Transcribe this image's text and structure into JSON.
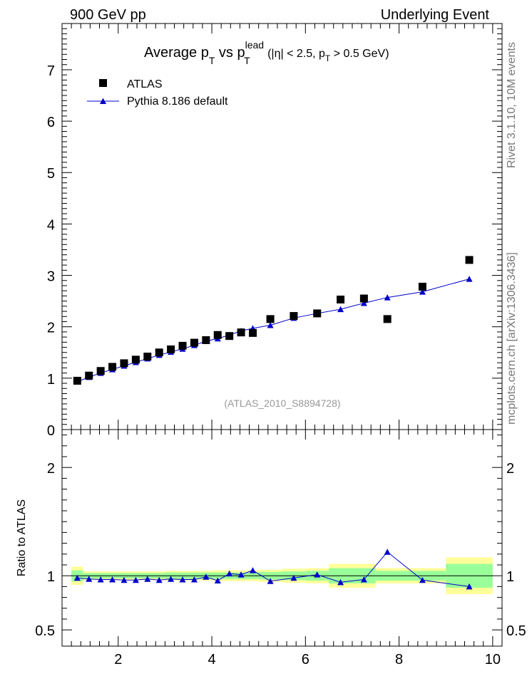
{
  "header": {
    "left": "900 GeV pp",
    "right": "Underlying Event"
  },
  "side": {
    "top": "Rivet 3.1.10,  10M events",
    "bottom": "mcplots.cern.ch [arXiv:1306.3436]"
  },
  "chart_data": [
    {
      "type": "scatter",
      "title_parts": {
        "pre": "Average p",
        "pre_sub": "T",
        "vs": " vs p",
        "sup": "lead",
        "sub2": "T",
        "cut_a": " (|η| < 2.5, p",
        "cut_sub": "T",
        "cut_b": " > 0.5 GeV)"
      },
      "watermark": "(ATLAS_2010_S8894728)",
      "xlim": [
        0.8,
        10.2
      ],
      "ylim": [
        0,
        7.9
      ],
      "yticks": [
        0,
        1,
        2,
        3,
        4,
        5,
        6,
        7
      ],
      "legend_position": "top-left",
      "colors": {
        "data": "#000000",
        "mc": "#0000cc"
      },
      "series": [
        {
          "name": "ATLAS",
          "marker": "square",
          "x": [
            1.125,
            1.375,
            1.625,
            1.875,
            2.125,
            2.375,
            2.625,
            2.875,
            3.125,
            3.375,
            3.625,
            3.875,
            4.125,
            4.375,
            4.625,
            4.875,
            5.25,
            5.75,
            6.25,
            6.75,
            7.25,
            7.75,
            8.5,
            9.5
          ],
          "y": [
            0.95,
            1.05,
            1.14,
            1.22,
            1.29,
            1.36,
            1.42,
            1.5,
            1.56,
            1.63,
            1.69,
            1.74,
            1.84,
            1.82,
            1.89,
            1.88,
            2.15,
            2.21,
            2.26,
            2.53,
            2.55,
            2.15,
            2.78,
            3.3
          ]
        },
        {
          "name": "Pythia 8.186 default",
          "marker": "triangle",
          "x": [
            1.125,
            1.375,
            1.625,
            1.875,
            2.125,
            2.375,
            2.625,
            2.875,
            3.125,
            3.375,
            3.625,
            3.875,
            4.125,
            4.375,
            4.625,
            4.875,
            5.25,
            5.75,
            6.25,
            6.75,
            7.25,
            7.75,
            8.5,
            9.5
          ],
          "y": [
            0.93,
            1.02,
            1.1,
            1.17,
            1.24,
            1.31,
            1.38,
            1.45,
            1.51,
            1.57,
            1.64,
            1.72,
            1.77,
            1.84,
            1.92,
            1.97,
            2.03,
            2.17,
            2.26,
            2.34,
            2.46,
            2.57,
            2.68,
            2.93
          ]
        }
      ]
    },
    {
      "type": "line",
      "ylabel": "Ratio to ATLAS",
      "xlim": [
        0.8,
        10.2
      ],
      "ylim": [
        0.35,
        2.35
      ],
      "xticks": [
        2,
        4,
        6,
        8,
        10
      ],
      "yticks": [
        0.5,
        1,
        2
      ],
      "ytick_labels": [
        "0.5",
        "1",
        "2"
      ],
      "colors": {
        "band_outer": "#ffff99",
        "band_inner": "#99ff99",
        "mc": "#0000cc"
      },
      "bands": {
        "edges": [
          1.0,
          1.25,
          1.5,
          1.75,
          2.0,
          2.25,
          2.5,
          2.75,
          3.0,
          3.25,
          3.5,
          3.75,
          4.0,
          4.25,
          4.5,
          4.75,
          5.0,
          5.5,
          6.0,
          6.5,
          7.0,
          7.5,
          8.0,
          9.0,
          10.0
        ],
        "outer": [
          0.085,
          0.04,
          0.04,
          0.04,
          0.04,
          0.04,
          0.04,
          0.04,
          0.045,
          0.045,
          0.045,
          0.045,
          0.05,
          0.05,
          0.05,
          0.05,
          0.055,
          0.065,
          0.07,
          0.11,
          0.11,
          0.07,
          0.07,
          0.17
        ],
        "inner": [
          0.05,
          0.025,
          0.025,
          0.025,
          0.025,
          0.025,
          0.025,
          0.025,
          0.03,
          0.03,
          0.03,
          0.03,
          0.03,
          0.03,
          0.03,
          0.03,
          0.035,
          0.04,
          0.045,
          0.07,
          0.07,
          0.045,
          0.045,
          0.11
        ]
      },
      "series": [
        {
          "name": "Pythia 8.186 default",
          "x": [
            1.125,
            1.375,
            1.625,
            1.875,
            2.125,
            2.375,
            2.625,
            2.875,
            3.125,
            3.375,
            3.625,
            3.875,
            4.125,
            4.375,
            4.625,
            4.875,
            5.25,
            5.75,
            6.25,
            6.75,
            7.25,
            7.75,
            8.5,
            9.5
          ],
          "y": [
            0.98,
            0.97,
            0.965,
            0.965,
            0.96,
            0.96,
            0.97,
            0.96,
            0.97,
            0.965,
            0.965,
            0.99,
            0.955,
            1.02,
            1.01,
            1.05,
            0.95,
            0.98,
            1.01,
            0.94,
            0.965,
            1.22,
            0.96,
            0.9
          ]
        }
      ]
    }
  ]
}
